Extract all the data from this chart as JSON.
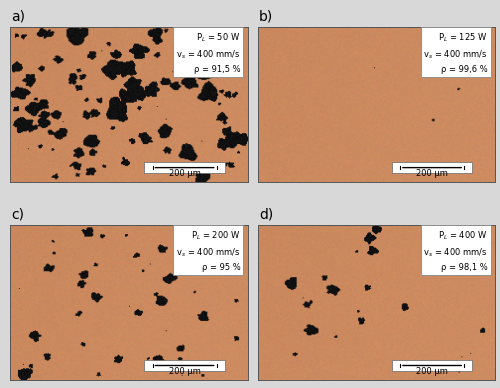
{
  "figure_size": [
    5.0,
    3.88
  ],
  "dpi": 100,
  "panel_labels": [
    "a)",
    "b)",
    "c)",
    "d)"
  ],
  "panel_label_fontsize": 10,
  "annotations": [
    {
      "power": "P$_L$ = 50 W",
      "speed": "v$_s$ = 400 mm/s",
      "density": "ρ = 91,5 %"
    },
    {
      "power": "P$_L$ = 125 W",
      "speed": "v$_s$ = 400 mm/s",
      "density": "ρ = 99,6 %"
    },
    {
      "power": "P$_L$ = 200 W",
      "speed": "v$_s$ = 400 mm/s",
      "density": "ρ = 95 %"
    },
    {
      "power": "P$_L$ = 400 W",
      "speed": "v$_s$ = 400 mm/s",
      "density": "ρ = 98,1 %"
    }
  ],
  "scalebar_text": "200 μm",
  "annotation_fontsize": 6.0,
  "scalebar_fontsize": 6.0,
  "base_color": [
    204,
    138,
    95
  ],
  "outer_bg": "#d8d8d8"
}
